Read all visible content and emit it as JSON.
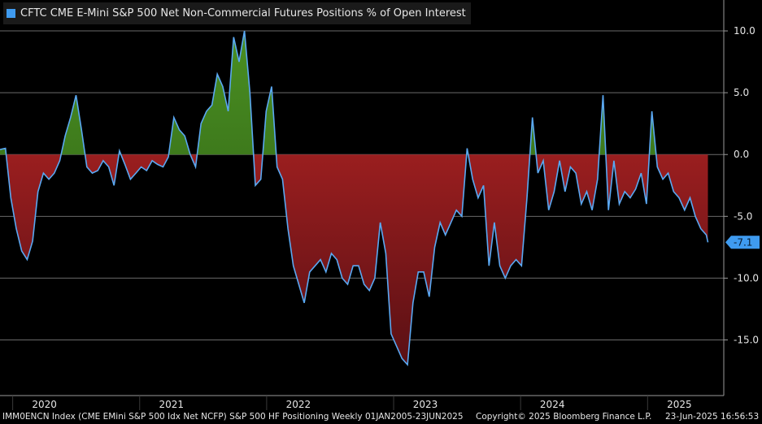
{
  "legend": {
    "label": "CFTC CME E-Mini S&P 500 Net Non-Commercial Futures Positions % of Open Interest",
    "color": "#3f9bf0"
  },
  "footer": {
    "left": "IMM0ENCN Index (CME EMini S&P 500 Idx Net NCFP) S&P 500 HF Positioning  Weekly 01JAN2005-23JUN2025",
    "copyright": "Copyright© 2025 Bloomberg Finance L.P.",
    "date": "23-Jun-2025 16:56:53"
  },
  "chart_data": {
    "type": "area",
    "ylim": [
      -19.5,
      12.5
    ],
    "y_ticks": [
      10.0,
      5.0,
      0.0,
      -5.0,
      -10.0,
      -15.0
    ],
    "y_tick_labels": [
      "10.0",
      "5.0",
      "0.0",
      "-5.0",
      "-10.0",
      "-15.0"
    ],
    "x_range": [
      2019.9,
      2025.6
    ],
    "year_labels": [
      {
        "label": "2020",
        "pos": 2020.25
      },
      {
        "label": "2021",
        "pos": 2021.25
      },
      {
        "label": "2022",
        "pos": 2022.25
      },
      {
        "label": "2023",
        "pos": 2023.25
      },
      {
        "label": "2024",
        "pos": 2024.25
      },
      {
        "label": "2025",
        "pos": 2025.25
      }
    ],
    "last_value_label": "-7.1",
    "colors": {
      "line": "#5aa8f2",
      "positive": "#3e7a1c",
      "negative": "#8b1a1d",
      "grid": "#6a6a6a"
    },
    "series": [
      {
        "x": [
          2019.9,
          2019.943,
          2019.985,
          2020.028,
          2020.071,
          2020.114,
          2020.157,
          2020.199,
          2020.242,
          2020.285,
          2020.328,
          2020.371,
          2020.413,
          2020.456,
          2020.499,
          2020.542,
          2020.584,
          2020.627,
          2020.67,
          2020.713,
          2020.756,
          2020.798,
          2020.841,
          2020.884,
          2020.927,
          2020.97,
          2021.012,
          2021.055,
          2021.098,
          2021.141,
          2021.184,
          2021.226,
          2021.269,
          2021.312,
          2021.355,
          2021.398,
          2021.44,
          2021.483,
          2021.526,
          2021.569,
          2021.611,
          2021.654,
          2021.697,
          2021.74,
          2021.783,
          2021.825,
          2021.868,
          2021.911,
          2021.954,
          2021.996,
          2022.039,
          2022.082,
          2022.125,
          2022.168,
          2022.21,
          2022.253,
          2022.296,
          2022.339,
          2022.382,
          2022.424,
          2022.467,
          2022.51,
          2022.553,
          2022.595,
          2022.638,
          2022.681,
          2022.724,
          2022.767,
          2022.809,
          2022.852,
          2022.895,
          2022.938,
          2022.98,
          2023.023,
          2023.066,
          2023.109,
          2023.152,
          2023.194,
          2023.237,
          2023.28,
          2023.323,
          2023.366,
          2023.408,
          2023.451,
          2023.494,
          2023.537,
          2023.579,
          2023.622,
          2023.665,
          2023.708,
          2023.751,
          2023.793,
          2023.836,
          2023.879,
          2023.922,
          2023.964,
          2024.007,
          2024.05,
          2024.093,
          2024.136,
          2024.178,
          2024.221,
          2024.264,
          2024.307,
          2024.35,
          2024.392,
          2024.435,
          2024.478,
          2024.521,
          2024.563,
          2024.606,
          2024.649,
          2024.692,
          2024.735,
          2024.777,
          2024.82,
          2024.863,
          2024.906,
          2024.949,
          2024.991,
          2025.034,
          2025.077,
          2025.12,
          2025.162,
          2025.205,
          2025.248,
          2025.291,
          2025.334,
          2025.376,
          2025.419,
          2025.462,
          2025.475
        ],
        "y": [
          0.4,
          0.5,
          -3.5,
          -6.0,
          -7.8,
          -8.5,
          -7.0,
          -3.0,
          -1.5,
          -2.0,
          -1.5,
          -0.5,
          1.5,
          3.0,
          4.8,
          2.0,
          -1.0,
          -1.5,
          -1.3,
          -0.5,
          -1.0,
          -2.5,
          0.3,
          -0.8,
          -2.0,
          -1.5,
          -1.0,
          -1.3,
          -0.5,
          -0.8,
          -1.0,
          -0.2,
          3.0,
          2.0,
          1.5,
          0.0,
          -1.0,
          2.5,
          3.5,
          4.0,
          6.5,
          5.5,
          3.5,
          9.5,
          7.5,
          10.0,
          5.0,
          -2.5,
          -2.0,
          3.5,
          5.5,
          -1.0,
          -2.0,
          -6.0,
          -9.0,
          -10.5,
          -12.0,
          -9.5,
          -9.0,
          -8.5,
          -9.5,
          -8.0,
          -8.5,
          -10.0,
          -10.5,
          -9.0,
          -9.0,
          -10.5,
          -11.0,
          -10.0,
          -5.5,
          -8.0,
          -14.5,
          -15.5,
          -16.5,
          -17.0,
          -12.0,
          -9.5,
          -9.5,
          -11.5,
          -7.5,
          -5.5,
          -6.5,
          -5.5,
          -4.5,
          -5.0,
          0.5,
          -2.0,
          -3.5,
          -2.5,
          -9.0,
          -5.5,
          -9.0,
          -10.0,
          -9.0,
          -8.5,
          -9.0,
          -3.5,
          3.0,
          -1.5,
          -0.5,
          -4.5,
          -3.0,
          -0.5,
          -3.0,
          -1.0,
          -1.5,
          -4.0,
          -3.0,
          -4.5,
          -2.0,
          4.8,
          -4.5,
          -0.5,
          -4.0,
          -3.0,
          -3.5,
          -2.8,
          -1.5,
          -4.0,
          3.5,
          -1.0,
          -2.0,
          -1.5,
          -3.0,
          -3.5,
          -4.5,
          -3.5,
          -5.0,
          -6.0,
          -6.5,
          -7.1
        ]
      }
    ]
  }
}
